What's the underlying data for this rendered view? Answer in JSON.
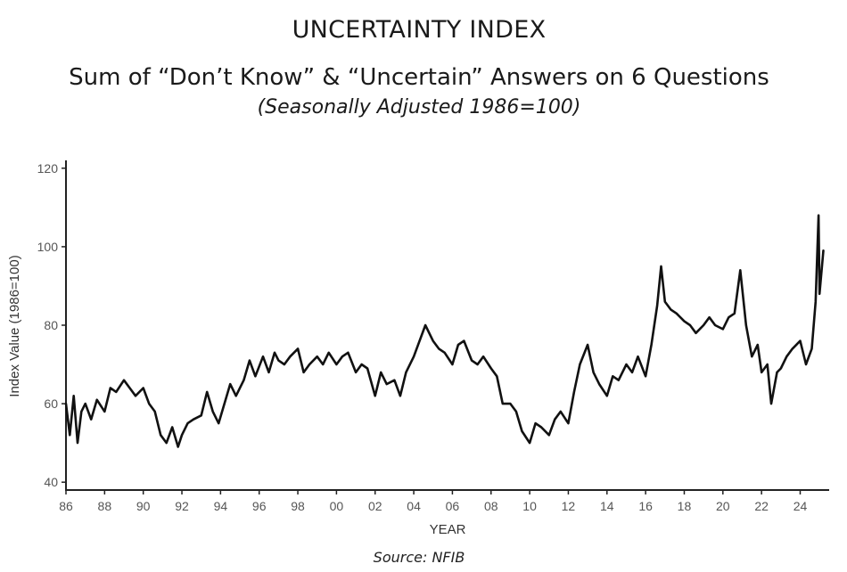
{
  "chart_data": {
    "type": "line",
    "title": "UNCERTAINTY INDEX",
    "subtitle": "Sum of “Don’t Know” & “Uncertain” Answers on 6 Questions",
    "note": "(Seasonally Adjusted 1986=100)",
    "xlabel": "YEAR",
    "ylabel": "Index Value (1986=100)",
    "xlim": [
      1986,
      2025.5
    ],
    "ylim": [
      38,
      122
    ],
    "x_ticks": [
      1986,
      1988,
      1990,
      1992,
      1994,
      1996,
      1998,
      2000,
      2002,
      2004,
      2006,
      2008,
      2010,
      2012,
      2014,
      2016,
      2018,
      2020,
      2022,
      2024
    ],
    "x_tick_labels": [
      "86",
      "88",
      "90",
      "92",
      "94",
      "96",
      "98",
      "00",
      "02",
      "04",
      "06",
      "08",
      "10",
      "12",
      "14",
      "16",
      "18",
      "20",
      "22",
      "24"
    ],
    "y_ticks": [
      40,
      60,
      80,
      100,
      120
    ],
    "y_tick_labels": [
      "40",
      "60",
      "80",
      "100",
      "120"
    ],
    "grid": false,
    "line_color": "#111111",
    "series": [
      {
        "x": [
          1986.0,
          1986.2,
          1986.4,
          1986.6,
          1986.8,
          1987.0,
          1987.3,
          1987.6,
          1988.0,
          1988.3,
          1988.6,
          1989.0,
          1989.3,
          1989.6,
          1990.0,
          1990.3,
          1990.6,
          1990.9,
          1991.2,
          1991.5,
          1991.8,
          1992.0,
          1992.3,
          1992.6,
          1993.0,
          1993.3,
          1993.6,
          1993.9,
          1994.2,
          1994.5,
          1994.8,
          1995.2,
          1995.5,
          1995.8,
          1996.2,
          1996.5,
          1996.8,
          1997.0,
          1997.3,
          1997.6,
          1998.0,
          1998.3,
          1998.6,
          1999.0,
          1999.3,
          1999.6,
          2000.0,
          2000.3,
          2000.6,
          2001.0,
          2001.3,
          2001.6,
          2002.0,
          2002.3,
          2002.6,
          2003.0,
          2003.3,
          2003.6,
          2004.0,
          2004.3,
          2004.6,
          2005.0,
          2005.3,
          2005.6,
          2006.0,
          2006.3,
          2006.6,
          2007.0,
          2007.3,
          2007.6,
          2008.0,
          2008.3,
          2008.6,
          2009.0,
          2009.3,
          2009.6,
          2010.0,
          2010.3,
          2010.6,
          2011.0,
          2011.3,
          2011.6,
          2012.0,
          2012.3,
          2012.6,
          2013.0,
          2013.3,
          2013.6,
          2014.0,
          2014.3,
          2014.6,
          2015.0,
          2015.3,
          2015.6,
          2016.0,
          2016.3,
          2016.6,
          2016.8,
          2017.0,
          2017.3,
          2017.6,
          2018.0,
          2018.3,
          2018.6,
          2019.0,
          2019.3,
          2019.6,
          2020.0,
          2020.3,
          2020.6,
          2020.9,
          2021.2,
          2021.5,
          2021.8,
          2022.0,
          2022.3,
          2022.5,
          2022.8,
          2023.0,
          2023.3,
          2023.6,
          2024.0,
          2024.3,
          2024.6,
          2024.8,
          2024.95,
          2025.0,
          2025.2
        ],
        "y": [
          60,
          52,
          62,
          50,
          58,
          60,
          56,
          61,
          58,
          64,
          63,
          66,
          64,
          62,
          64,
          60,
          58,
          52,
          50,
          54,
          49,
          52,
          55,
          56,
          57,
          63,
          58,
          55,
          60,
          65,
          62,
          66,
          71,
          67,
          72,
          68,
          73,
          71,
          70,
          72,
          74,
          68,
          70,
          72,
          70,
          73,
          70,
          72,
          73,
          68,
          70,
          69,
          62,
          68,
          65,
          66,
          62,
          68,
          72,
          76,
          80,
          76,
          74,
          73,
          70,
          75,
          76,
          71,
          70,
          72,
          69,
          67,
          60,
          60,
          58,
          53,
          50,
          55,
          54,
          52,
          56,
          58,
          55,
          63,
          70,
          75,
          68,
          65,
          62,
          67,
          66,
          70,
          68,
          72,
          67,
          75,
          85,
          95,
          86,
          84,
          83,
          81,
          80,
          78,
          80,
          82,
          80,
          79,
          82,
          83,
          94,
          80,
          72,
          75,
          68,
          70,
          60,
          68,
          69,
          72,
          74,
          76,
          70,
          74,
          86,
          108,
          88,
          99
        ]
      }
    ]
  },
  "source": "Source: NFIB"
}
